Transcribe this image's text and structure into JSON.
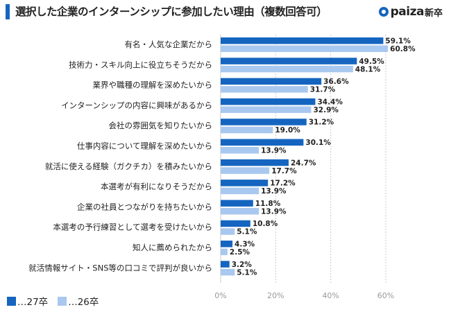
{
  "title": "選択した企業のインターンシップに参加したい理由（複数回答可）",
  "brand": {
    "name": "paiza",
    "sub": "新卒",
    "color": "#1565c0"
  },
  "legend": [
    {
      "label": "…27卒",
      "color": "#1565c0"
    },
    {
      "label": "…26卒",
      "color": "#a9c8ef"
    }
  ],
  "chart_data": {
    "type": "bar",
    "orientation": "horizontal",
    "title": "選択した企業のインターンシップに参加したい理由（複数回答可）",
    "categories": [
      "有名・人気な企業だから",
      "技術力・スキル向上に役立ちそうだから",
      "業界や職種の理解を深めたいから",
      "インターンシップの内容に興味があるから",
      "会社の雰囲気を知りたいから",
      "仕事内容について理解を深めたいから",
      "就活に使える経験（ガクチカ）を積みたいから",
      "本選考が有利になりそうだから",
      "企業の社員とつながりを持ちたいから",
      "本選考の予行練習として選考を受けたいから",
      "知人に薦められたから",
      "就活情報サイト・SNS等の口コミで評判が良いから"
    ],
    "series": [
      {
        "name": "…27卒",
        "color": "#1565c0",
        "values": [
          59.1,
          49.5,
          36.6,
          34.4,
          31.2,
          30.1,
          24.7,
          17.2,
          11.8,
          10.8,
          4.3,
          3.2
        ],
        "labels": [
          "59.1%",
          "49.5%",
          "36.6%",
          "34.4%",
          "31.2%",
          "30.1%",
          "24.7%",
          "17.2%",
          "11.8%",
          "10.8%",
          "4.3%",
          "3.2%"
        ]
      },
      {
        "name": "…26卒",
        "color": "#a9c8ef",
        "values": [
          60.8,
          48.1,
          31.7,
          32.9,
          19.0,
          13.9,
          17.7,
          13.9,
          13.9,
          5.1,
          2.5,
          5.1
        ],
        "labels": [
          "60.8%",
          "48.1%",
          "31.7%",
          "32.9%",
          "19.0%",
          "13.9%",
          "17.7%",
          "13.9%",
          "13.9%",
          "5.1%",
          "2.5%",
          "5.1%"
        ]
      }
    ],
    "xlim": [
      0,
      70
    ],
    "xticks": [
      0,
      20,
      40,
      60
    ],
    "xtick_labels": [
      "0%",
      "20%",
      "40%",
      "60%"
    ],
    "grid": true,
    "legend_position": "bottom-left"
  }
}
